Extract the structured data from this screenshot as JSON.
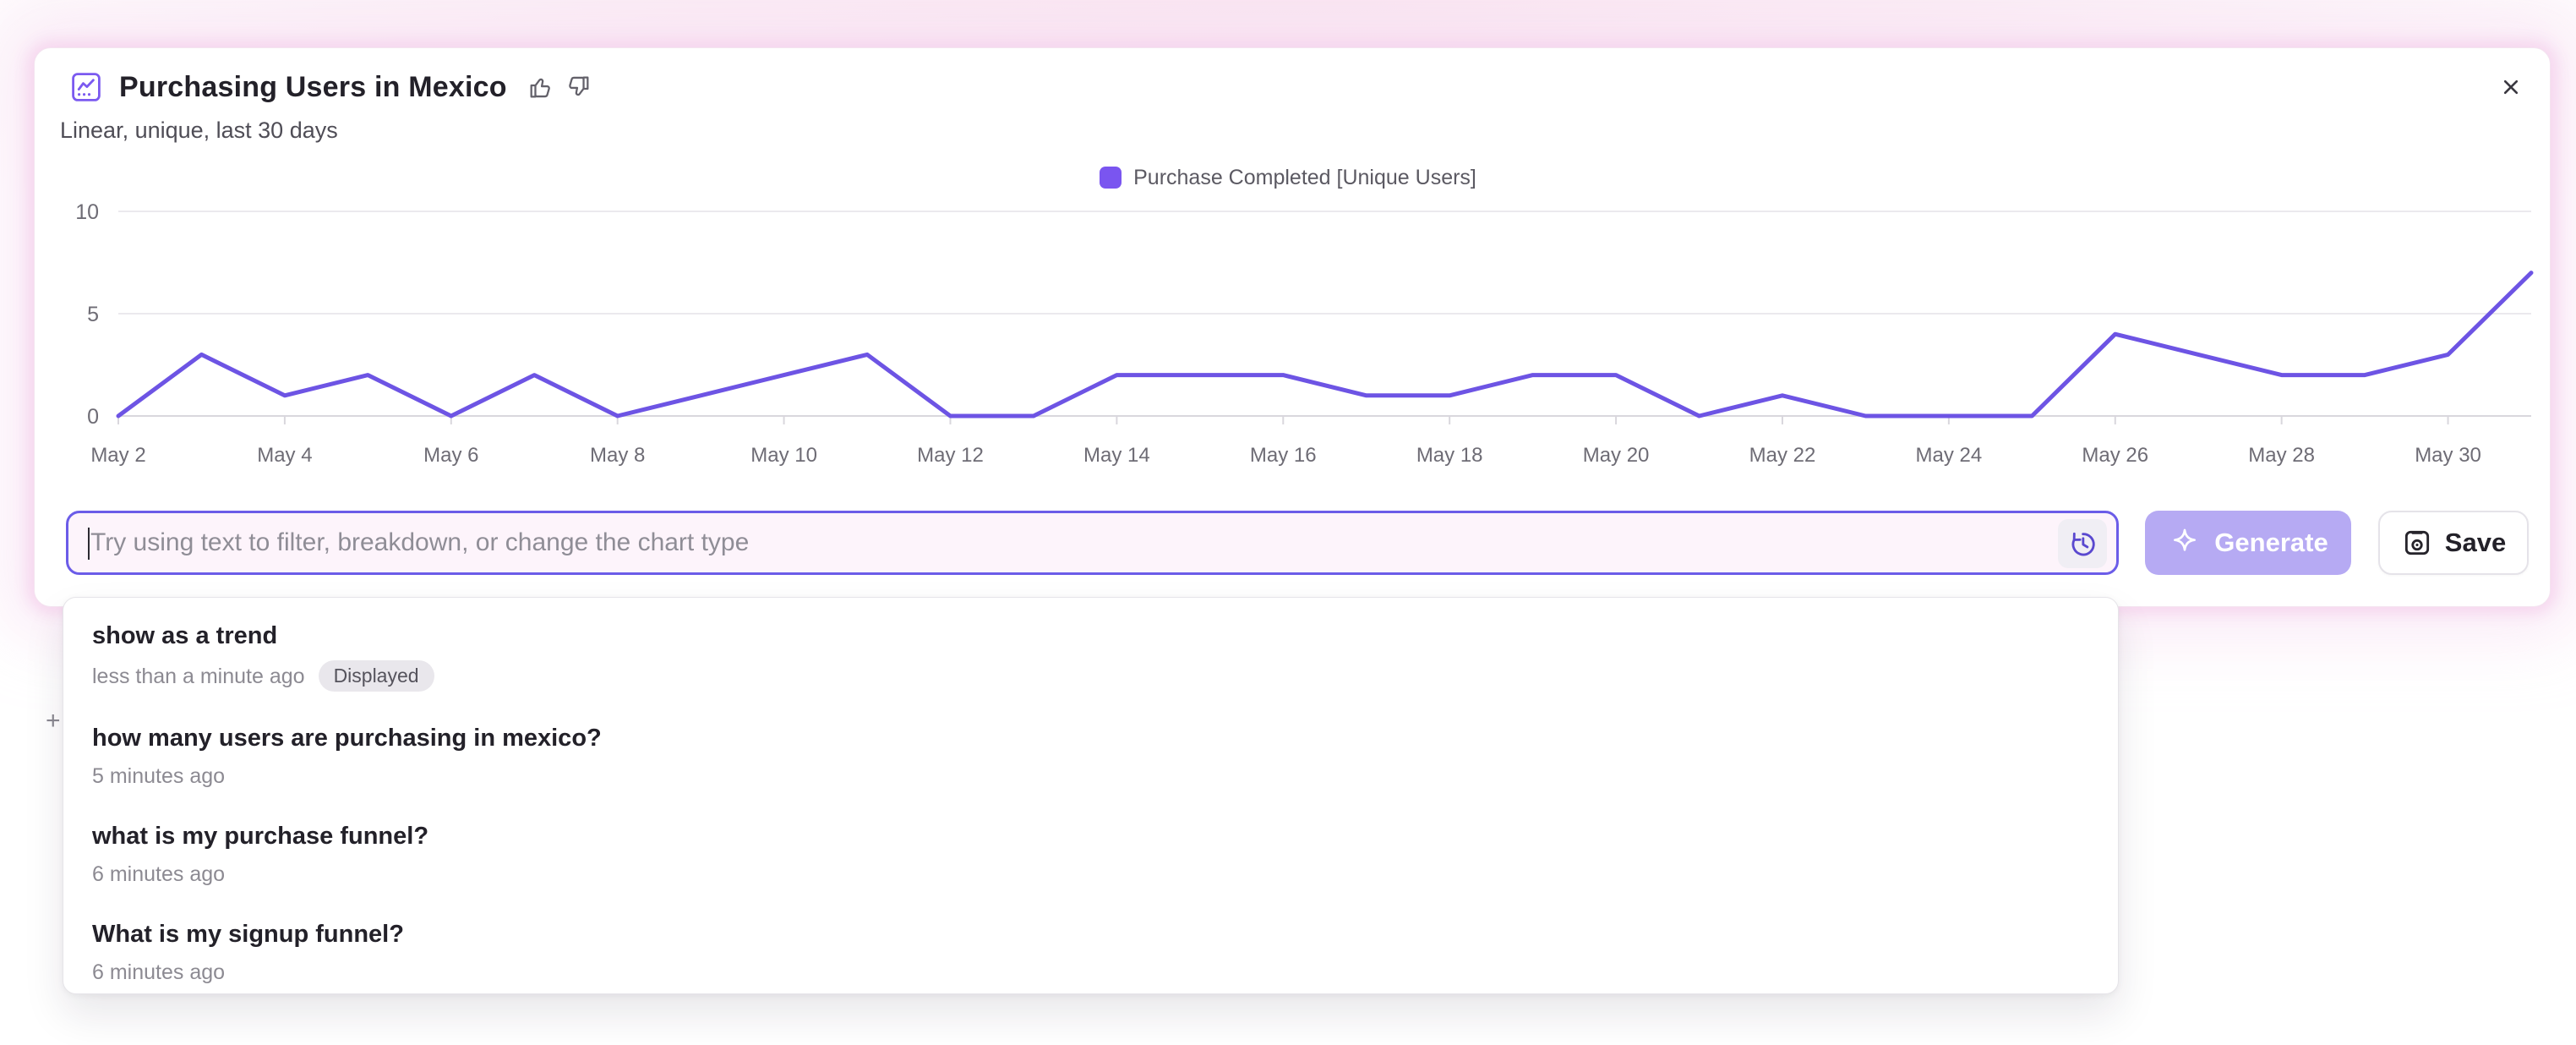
{
  "header": {
    "title": "Purchasing Users in Mexico",
    "subtitle": "Linear, unique, last 30 days"
  },
  "legend": {
    "label": "Purchase Completed [Unique Users]",
    "color": "#7a55f0"
  },
  "chart_data": {
    "type": "line",
    "title": "Purchasing Users in Mexico",
    "x": [
      "May 2",
      "May 3",
      "May 4",
      "May 5",
      "May 6",
      "May 7",
      "May 8",
      "May 9",
      "May 10",
      "May 11",
      "May 12",
      "May 13",
      "May 14",
      "May 15",
      "May 16",
      "May 17",
      "May 18",
      "May 19",
      "May 20",
      "May 21",
      "May 22",
      "May 23",
      "May 24",
      "May 25",
      "May 26",
      "May 27",
      "May 28",
      "May 29",
      "May 30",
      "May 31"
    ],
    "series": [
      {
        "name": "Purchase Completed [Unique Users]",
        "color": "#6d54e4",
        "values": [
          0,
          3,
          1,
          2,
          0,
          2,
          0,
          1,
          2,
          3,
          0,
          0,
          2,
          2,
          2,
          1,
          1,
          2,
          2,
          0,
          1,
          0,
          0,
          0,
          4,
          3,
          2,
          2,
          3,
          7
        ]
      }
    ],
    "xlabel": "",
    "ylabel": "",
    "ylim": [
      0,
      10
    ],
    "yticks": [
      0,
      5,
      10
    ],
    "xtick_every": 2,
    "grid": "horizontal",
    "legend_position": "top-center"
  },
  "prompt_bar": {
    "placeholder": "Try using text to filter, breakdown, or change the chart type",
    "generate_label": "Generate",
    "save_label": "Save"
  },
  "history_dropdown": {
    "items": [
      {
        "query": "show as a trend",
        "time": "less than a minute ago",
        "badge": "Displayed"
      },
      {
        "query": "how many users are purchasing in mexico?",
        "time": "5 minutes ago",
        "badge": ""
      },
      {
        "query": "what is my purchase funnel?",
        "time": "6 minutes ago",
        "badge": ""
      },
      {
        "query": "What is my signup funnel?",
        "time": "6 minutes ago",
        "badge": ""
      }
    ]
  },
  "colors": {
    "line": "#6d54e4",
    "legend_swatch": "#7a55f0",
    "input_border": "#6b5ce8",
    "input_background": "#fdf4fb",
    "generate_background": "#b6aaf3",
    "history_icon": "#5a48cf",
    "badge_background": "#e9e7ec",
    "card_glow_pink": "#f6d9ee",
    "grid_line": "#ebe9ee",
    "axis_text": "#6e6c75"
  }
}
